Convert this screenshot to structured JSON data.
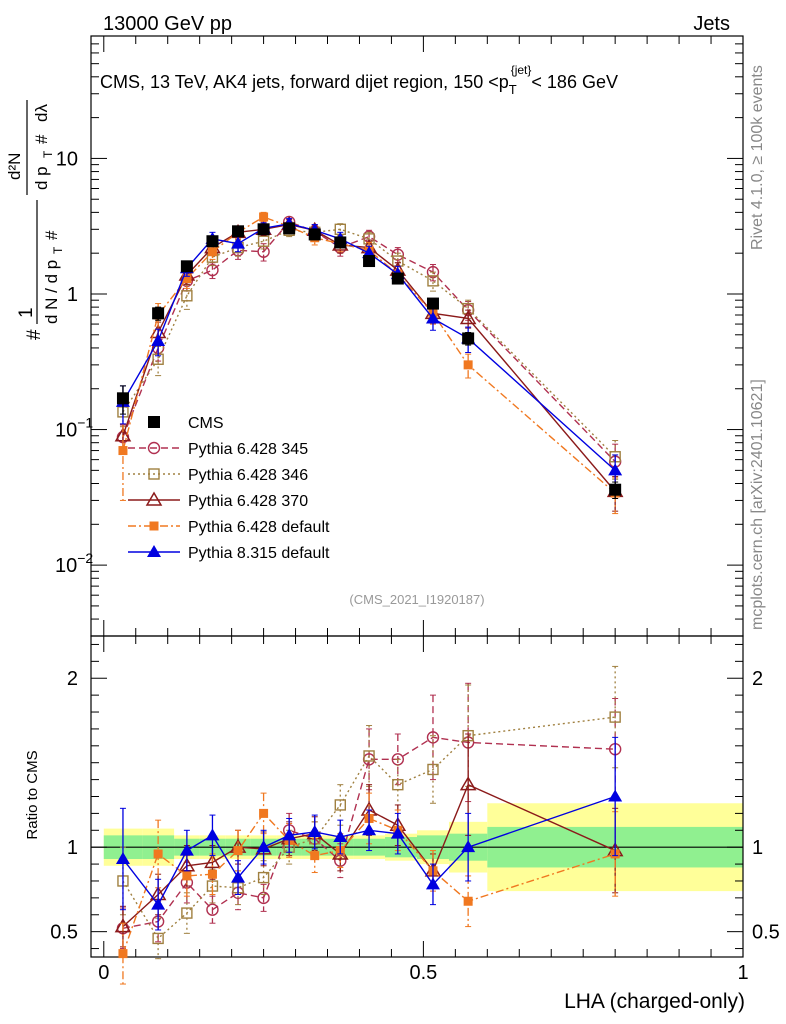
{
  "header": {
    "left": "13000 GeV pp",
    "right": "Jets",
    "side_text": "Rivet 4.1.0, ≥ 100k events",
    "side_url": "mcplots.cern.ch [arXiv:2401.10621]",
    "analysis_id": "(CMS_2021_I1920187)"
  },
  "chart_data": [
    {
      "type": "scatter",
      "panel": "main",
      "title_parts": {
        "prefix": "CMS, 13 TeV, AK4 jets, forward dijet region, 150 <p",
        "sub": "T",
        "sup": "{jet}",
        "suffix": "< 186 GeV"
      },
      "ylabel": "1 / (dN / dp_T) · d²N / (dp_T dλ)",
      "yscale": "log",
      "ylim": [
        0.003,
        80
      ],
      "xlim": [
        -0.02,
        1.0
      ],
      "yticks": [
        {
          "value": 0.01,
          "base": "10",
          "exp": "−2"
        },
        {
          "value": 0.1,
          "base": "10",
          "exp": "−1"
        },
        {
          "value": 1,
          "base": "1",
          "exp": ""
        },
        {
          "value": 10,
          "base": "10",
          "exp": ""
        }
      ],
      "legend_placement": "lower-left",
      "series": [
        {
          "name": "CMS",
          "color": "#000000",
          "marker": "square-filled",
          "line": "none",
          "x": [
            0.03,
            0.085,
            0.13,
            0.17,
            0.21,
            0.25,
            0.29,
            0.33,
            0.37,
            0.415,
            0.46,
            0.515,
            0.57,
            0.8
          ],
          "y": [
            0.17,
            0.72,
            1.6,
            2.45,
            2.9,
            3.0,
            3.05,
            2.75,
            2.4,
            1.75,
            1.3,
            0.85,
            0.47,
            0.036
          ],
          "err": [
            0.04,
            0.08,
            0.12,
            0.15,
            0.15,
            0.15,
            0.15,
            0.15,
            0.15,
            0.12,
            0.1,
            0.07,
            0.05,
            0.005
          ]
        },
        {
          "name": "Pythia 6.428 345",
          "color": "#b03050",
          "marker": "circle-open",
          "line": "dashed",
          "x": [
            0.03,
            0.085,
            0.13,
            0.17,
            0.21,
            0.25,
            0.29,
            0.33,
            0.37,
            0.415,
            0.46,
            0.515,
            0.57,
            0.8
          ],
          "y": [
            0.088,
            0.4,
            1.25,
            1.5,
            2.1,
            2.05,
            3.4,
            2.9,
            2.2,
            2.65,
            1.95,
            1.45,
            0.76,
            0.058
          ],
          "err": [
            0.02,
            0.08,
            0.2,
            0.2,
            0.3,
            0.3,
            0.3,
            0.3,
            0.3,
            0.3,
            0.25,
            0.2,
            0.12,
            0.02
          ]
        },
        {
          "name": "Pythia 6.428 346",
          "color": "#a08040",
          "marker": "square-open",
          "line": "dotted",
          "x": [
            0.03,
            0.085,
            0.13,
            0.17,
            0.21,
            0.25,
            0.29,
            0.33,
            0.37,
            0.415,
            0.46,
            0.515,
            0.57,
            0.8
          ],
          "y": [
            0.135,
            0.33,
            0.97,
            1.87,
            2.2,
            2.45,
            2.95,
            2.85,
            3.0,
            2.55,
            1.75,
            1.25,
            0.78,
            0.063
          ],
          "err": [
            0.03,
            0.08,
            0.2,
            0.25,
            0.3,
            0.3,
            0.3,
            0.3,
            0.3,
            0.3,
            0.25,
            0.2,
            0.12,
            0.02
          ]
        },
        {
          "name": "Pythia 6.428 370",
          "color": "#8b1a1a",
          "marker": "triangle-open",
          "line": "solid",
          "x": [
            0.03,
            0.085,
            0.13,
            0.17,
            0.21,
            0.25,
            0.29,
            0.33,
            0.37,
            0.415,
            0.46,
            0.515,
            0.57,
            0.8
          ],
          "y": [
            0.09,
            0.52,
            1.38,
            2.2,
            2.85,
            3.0,
            3.25,
            2.95,
            2.3,
            2.2,
            1.5,
            0.72,
            0.66,
            0.035
          ],
          "err": [
            0.02,
            0.1,
            0.2,
            0.25,
            0.3,
            0.3,
            0.3,
            0.3,
            0.3,
            0.3,
            0.2,
            0.12,
            0.1,
            0.01
          ]
        },
        {
          "name": "Pythia 6.428 default",
          "color": "#f07820",
          "marker": "square-filled-small",
          "line": "dashdot",
          "x": [
            0.03,
            0.085,
            0.13,
            0.17,
            0.21,
            0.25,
            0.29,
            0.33,
            0.37,
            0.415,
            0.46,
            0.515,
            0.57,
            0.8
          ],
          "y": [
            0.07,
            0.7,
            1.3,
            2.05,
            2.85,
            3.7,
            3.15,
            2.6,
            2.35,
            2.1,
            1.4,
            0.72,
            0.3,
            0.034
          ],
          "err": [
            0.04,
            0.15,
            0.2,
            0.25,
            0.3,
            0.3,
            0.3,
            0.3,
            0.3,
            0.3,
            0.2,
            0.12,
            0.06,
            0.01
          ]
        },
        {
          "name": "Pythia 8.315 default",
          "color": "#0000e0",
          "marker": "triangle-filled",
          "line": "solid",
          "x": [
            0.03,
            0.085,
            0.13,
            0.17,
            0.21,
            0.25,
            0.29,
            0.33,
            0.37,
            0.415,
            0.46,
            0.515,
            0.57,
            0.8
          ],
          "y": [
            0.16,
            0.45,
            1.55,
            2.55,
            2.35,
            3.05,
            3.3,
            2.95,
            2.55,
            2.0,
            1.4,
            0.66,
            0.47,
            0.05
          ],
          "err": [
            0.05,
            0.1,
            0.2,
            0.3,
            0.3,
            0.3,
            0.3,
            0.3,
            0.3,
            0.25,
            0.2,
            0.12,
            0.1,
            0.015
          ]
        }
      ]
    },
    {
      "type": "scatter",
      "panel": "ratio",
      "ylabel": "Ratio to CMS",
      "xlabel": "LHA (charged-only)",
      "ylim": [
        0.35,
        2.25
      ],
      "xlim": [
        -0.02,
        1.0
      ],
      "yticks": [
        0.5,
        1,
        2
      ],
      "xticks": [
        0,
        0.5,
        1
      ],
      "reference_line": 1,
      "bands": {
        "bins": [
          [
            0.0,
            0.06
          ],
          [
            0.06,
            0.11
          ],
          [
            0.11,
            0.15
          ],
          [
            0.15,
            0.19
          ],
          [
            0.19,
            0.23
          ],
          [
            0.23,
            0.27
          ],
          [
            0.27,
            0.31
          ],
          [
            0.31,
            0.35
          ],
          [
            0.35,
            0.39
          ],
          [
            0.39,
            0.44
          ],
          [
            0.44,
            0.49
          ],
          [
            0.49,
            0.54
          ],
          [
            0.54,
            0.6
          ],
          [
            0.6,
            1.0
          ]
        ],
        "inner": [
          0.07,
          0.07,
          0.05,
          0.05,
          0.05,
          0.05,
          0.05,
          0.05,
          0.05,
          0.05,
          0.06,
          0.07,
          0.08,
          0.12
        ],
        "outer": [
          0.11,
          0.11,
          0.07,
          0.07,
          0.07,
          0.07,
          0.07,
          0.07,
          0.07,
          0.07,
          0.08,
          0.1,
          0.15,
          0.26
        ],
        "inner_color": "#90f090",
        "outer_color": "#ffff99"
      },
      "series": [
        {
          "name": "Pythia 6.428 345",
          "x": [
            0.03,
            0.085,
            0.13,
            0.17,
            0.21,
            0.25,
            0.29,
            0.33,
            0.37,
            0.415,
            0.46,
            0.515,
            0.57,
            0.8
          ],
          "y": [
            0.52,
            0.56,
            0.79,
            0.63,
            0.73,
            0.7,
            1.1,
            1.05,
            0.92,
            1.52,
            1.52,
            1.65,
            1.62,
            1.58
          ],
          "err": [
            0.12,
            0.12,
            0.12,
            0.08,
            0.1,
            0.08,
            0.1,
            0.1,
            0.1,
            0.18,
            0.15,
            0.25,
            0.35,
            0.3
          ]
        },
        {
          "name": "Pythia 6.428 346",
          "x": [
            0.03,
            0.085,
            0.13,
            0.17,
            0.21,
            0.25,
            0.29,
            0.33,
            0.37,
            0.415,
            0.46,
            0.515,
            0.57,
            0.8
          ],
          "y": [
            0.8,
            0.46,
            0.61,
            0.77,
            0.76,
            0.82,
            1.0,
            1.05,
            1.25,
            1.54,
            1.37,
            1.46,
            1.66,
            1.77
          ],
          "err": [
            0.2,
            0.12,
            0.12,
            0.1,
            0.1,
            0.1,
            0.1,
            0.1,
            0.12,
            0.18,
            0.15,
            0.2,
            0.3,
            0.3
          ]
        },
        {
          "name": "Pythia 6.428 370",
          "x": [
            0.03,
            0.085,
            0.13,
            0.17,
            0.21,
            0.25,
            0.29,
            0.33,
            0.37,
            0.415,
            0.46,
            0.515,
            0.57,
            0.8
          ],
          "y": [
            0.53,
            0.72,
            0.89,
            0.91,
            1.0,
            0.99,
            1.05,
            1.08,
            0.96,
            1.22,
            1.13,
            0.86,
            1.37,
            0.98
          ],
          "err": [
            0.12,
            0.12,
            0.12,
            0.1,
            0.1,
            0.1,
            0.1,
            0.1,
            0.1,
            0.15,
            0.12,
            0.1,
            0.3,
            0.25
          ]
        },
        {
          "name": "Pythia 6.428 default",
          "x": [
            0.03,
            0.085,
            0.13,
            0.17,
            0.21,
            0.25,
            0.29,
            0.33,
            0.37,
            0.415,
            0.46,
            0.515,
            0.57,
            0.8
          ],
          "y": [
            0.37,
            0.96,
            0.83,
            0.84,
            0.98,
            1.2,
            1.04,
            0.95,
            0.98,
            1.17,
            1.1,
            0.86,
            0.68,
            0.96
          ],
          "err": [
            0.18,
            0.2,
            0.12,
            0.12,
            0.12,
            0.12,
            0.1,
            0.1,
            0.1,
            0.15,
            0.12,
            0.12,
            0.15,
            0.25
          ]
        },
        {
          "name": "Pythia 8.315 default",
          "x": [
            0.03,
            0.085,
            0.13,
            0.17,
            0.21,
            0.25,
            0.29,
            0.33,
            0.37,
            0.415,
            0.46,
            0.515,
            0.57,
            0.8
          ],
          "y": [
            0.93,
            0.66,
            0.98,
            1.07,
            0.82,
            1.0,
            1.07,
            1.09,
            1.06,
            1.1,
            1.08,
            0.78,
            1.0,
            1.3
          ],
          "err": [
            0.3,
            0.15,
            0.12,
            0.12,
            0.1,
            0.1,
            0.1,
            0.1,
            0.1,
            0.12,
            0.12,
            0.12,
            0.2,
            0.35
          ]
        }
      ]
    }
  ]
}
